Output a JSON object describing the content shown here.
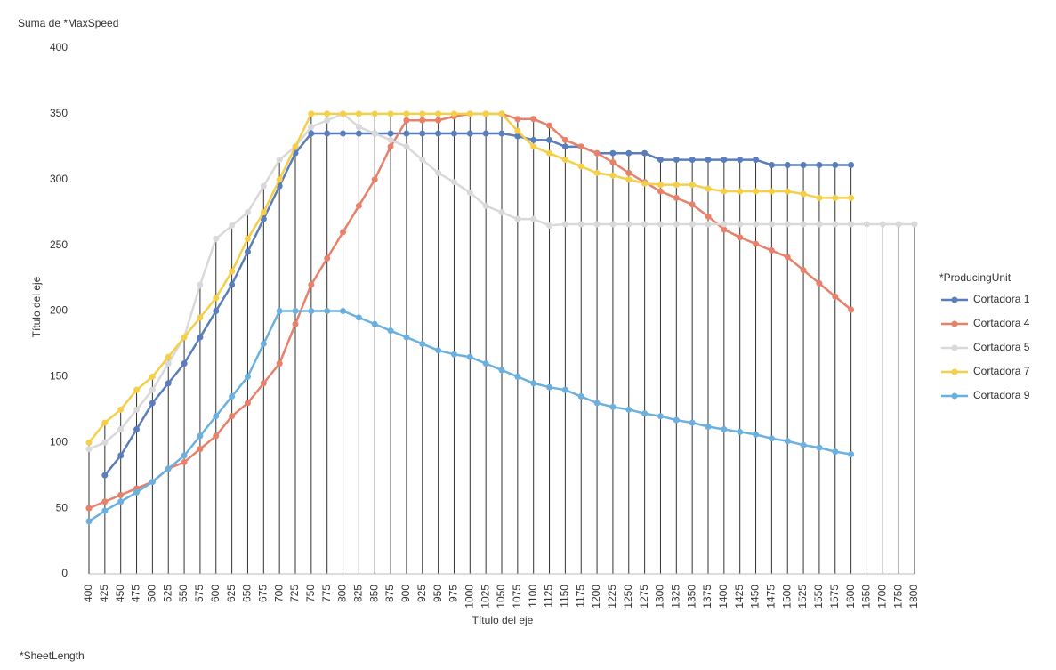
{
  "chart_data": {
    "type": "line",
    "title": "Suma de *MaxSpeed",
    "xlabel": "Título del eje",
    "ylabel": "Título del eje",
    "field_label": "*SheetLength",
    "legend_title": "*ProducingUnit",
    "legend": "right",
    "categories": [
      "400",
      "425",
      "450",
      "475",
      "500",
      "525",
      "550",
      "575",
      "600",
      "625",
      "650",
      "675",
      "700",
      "725",
      "750",
      "775",
      "800",
      "825",
      "850",
      "875",
      "900",
      "925",
      "950",
      "975",
      "1000",
      "1025",
      "1050",
      "1075",
      "1100",
      "1125",
      "1150",
      "1175",
      "1200",
      "1225",
      "1250",
      "1275",
      "1300",
      "1325",
      "1350",
      "1375",
      "1400",
      "1425",
      "1450",
      "1475",
      "1500",
      "1525",
      "1550",
      "1575",
      "1600",
      "1650",
      "1700",
      "1750",
      "1800"
    ],
    "ylim": [
      0,
      400
    ],
    "yticks": [
      0,
      50,
      100,
      150,
      200,
      250,
      300,
      350,
      400
    ],
    "series": [
      {
        "name": "Cortadora 1",
        "color": "#5a7dbb",
        "values": [
          null,
          75,
          90,
          110,
          130,
          145,
          160,
          180,
          200,
          220,
          245,
          270,
          295,
          320,
          335,
          335,
          335,
          335,
          335,
          335,
          335,
          335,
          335,
          335,
          335,
          335,
          335,
          333,
          330,
          330,
          325,
          325,
          320,
          320,
          320,
          320,
          315,
          315,
          315,
          315,
          315,
          315,
          315,
          311,
          311,
          311,
          311,
          311,
          311,
          null,
          null,
          null,
          null
        ]
      },
      {
        "name": "Cortadora 4",
        "color": "#e8806a",
        "values": [
          50,
          55,
          60,
          65,
          70,
          80,
          85,
          95,
          105,
          120,
          130,
          145,
          160,
          190,
          220,
          240,
          260,
          280,
          300,
          325,
          345,
          345,
          345,
          348,
          350,
          350,
          350,
          346,
          346,
          341,
          330,
          325,
          320,
          313,
          305,
          298,
          291,
          286,
          281,
          272,
          262,
          256,
          251,
          246,
          241,
          231,
          221,
          211,
          201,
          null,
          null,
          null,
          null
        ]
      },
      {
        "name": "Cortadora 5",
        "color": "#d9d9d9",
        "values": [
          95,
          100,
          110,
          125,
          140,
          160,
          180,
          220,
          255,
          265,
          275,
          295,
          315,
          325,
          340,
          345,
          350,
          340,
          335,
          330,
          325,
          315,
          305,
          298,
          290,
          280,
          275,
          270,
          270,
          265,
          266,
          266,
          266,
          266,
          266,
          266,
          266,
          266,
          266,
          266,
          266,
          266,
          266,
          266,
          266,
          266,
          266,
          266,
          266,
          266,
          266,
          266,
          266
        ]
      },
      {
        "name": "Cortadora 7",
        "color": "#f5cf4a",
        "values": [
          100,
          115,
          125,
          140,
          150,
          165,
          180,
          195,
          210,
          230,
          255,
          275,
          300,
          325,
          350,
          350,
          350,
          350,
          350,
          350,
          350,
          350,
          350,
          350,
          350,
          350,
          350,
          337,
          325,
          320,
          315,
          310,
          305,
          303,
          300,
          297,
          296,
          296,
          296,
          293,
          291,
          291,
          291,
          291,
          291,
          289,
          286,
          286,
          286,
          null,
          null,
          null,
          null
        ]
      },
      {
        "name": "Cortadora 9",
        "color": "#6cb0e0",
        "values": [
          40,
          48,
          55,
          62,
          70,
          80,
          90,
          105,
          120,
          135,
          150,
          175,
          200,
          200,
          200,
          200,
          200,
          195,
          190,
          185,
          180,
          175,
          170,
          167,
          165,
          160,
          155,
          150,
          145,
          142,
          140,
          135,
          130,
          127,
          125,
          122,
          120,
          117,
          115,
          112,
          110,
          108,
          106,
          103,
          101,
          98,
          96,
          93,
          91,
          null,
          null,
          null,
          null
        ]
      }
    ]
  }
}
